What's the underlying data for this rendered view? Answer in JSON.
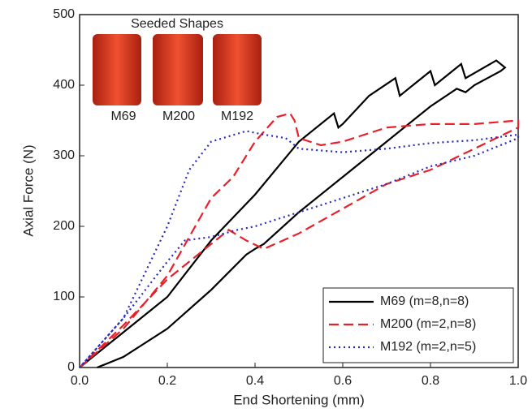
{
  "chart_data": {
    "type": "line",
    "xlabel": "End Shortening (mm)",
    "ylabel": "Axial Force (N)",
    "xlim": [
      0,
      1
    ],
    "ylim": [
      0,
      500
    ],
    "xticks": [
      {
        "value": 0,
        "label": "0.0"
      },
      0.2,
      0.4,
      0.6,
      0.8,
      {
        "value": 1,
        "label": "1.0"
      }
    ],
    "yticks": [
      0,
      100,
      200,
      300,
      400,
      500
    ],
    "legend": "lower right",
    "inset": {
      "title": "Seeded Shapes",
      "labels": [
        "M69",
        "M200",
        "M192"
      ]
    },
    "series": [
      {
        "name": "M69 (m=8,n=8)",
        "color": "#000000",
        "dash": "solid",
        "x": [
          0,
          0.1,
          0.2,
          0.3,
          0.4,
          0.5,
          0.58,
          0.59,
          0.6,
          0.66,
          0.72,
          0.73,
          0.8,
          0.81,
          0.87,
          0.88,
          0.95,
          0.97,
          0.96,
          0.9,
          0.88,
          0.86,
          0.8,
          0.7,
          0.6,
          0.5,
          0.42,
          0.4,
          0.38,
          0.3,
          0.2,
          0.1,
          0.04
        ],
        "values": [
          0,
          50,
          100,
          180,
          245,
          320,
          360,
          340,
          345,
          385,
          410,
          385,
          420,
          400,
          430,
          410,
          435,
          425,
          420,
          400,
          390,
          395,
          370,
          320,
          270,
          220,
          175,
          168,
          160,
          110,
          55,
          15,
          0
        ]
      },
      {
        "name": "M200 (m=2,n=8)",
        "color": "#e8202a",
        "dash": "dashed",
        "x": [
          0,
          0.1,
          0.2,
          0.3,
          0.35,
          0.4,
          0.45,
          0.48,
          0.49,
          0.5,
          0.55,
          0.6,
          0.7,
          0.8,
          0.9,
          1,
          1,
          0.9,
          0.8,
          0.7,
          0.6,
          0.5,
          0.42,
          0.38,
          0.34,
          0.3,
          0.2,
          0.1,
          0
        ],
        "values": [
          0,
          55,
          130,
          240,
          270,
          320,
          355,
          360,
          350,
          325,
          315,
          320,
          340,
          345,
          345,
          350,
          340,
          310,
          280,
          260,
          225,
          190,
          168,
          180,
          195,
          175,
          125,
          60,
          0
        ]
      },
      {
        "name": "M192 (m=2,n=5)",
        "color": "#2a2ab8",
        "dash": "dotted",
        "x": [
          0,
          0.1,
          0.2,
          0.25,
          0.3,
          0.38,
          0.42,
          0.47,
          0.5,
          0.6,
          0.7,
          0.8,
          0.9,
          1,
          1,
          0.9,
          0.8,
          0.7,
          0.6,
          0.5,
          0.4,
          0.36,
          0.3,
          0.24,
          0.2,
          0.1,
          0
        ],
        "values": [
          0,
          70,
          200,
          280,
          320,
          335,
          330,
          325,
          310,
          305,
          310,
          318,
          322,
          330,
          325,
          300,
          285,
          260,
          240,
          220,
          200,
          195,
          185,
          180,
          150,
          70,
          0
        ]
      }
    ]
  }
}
